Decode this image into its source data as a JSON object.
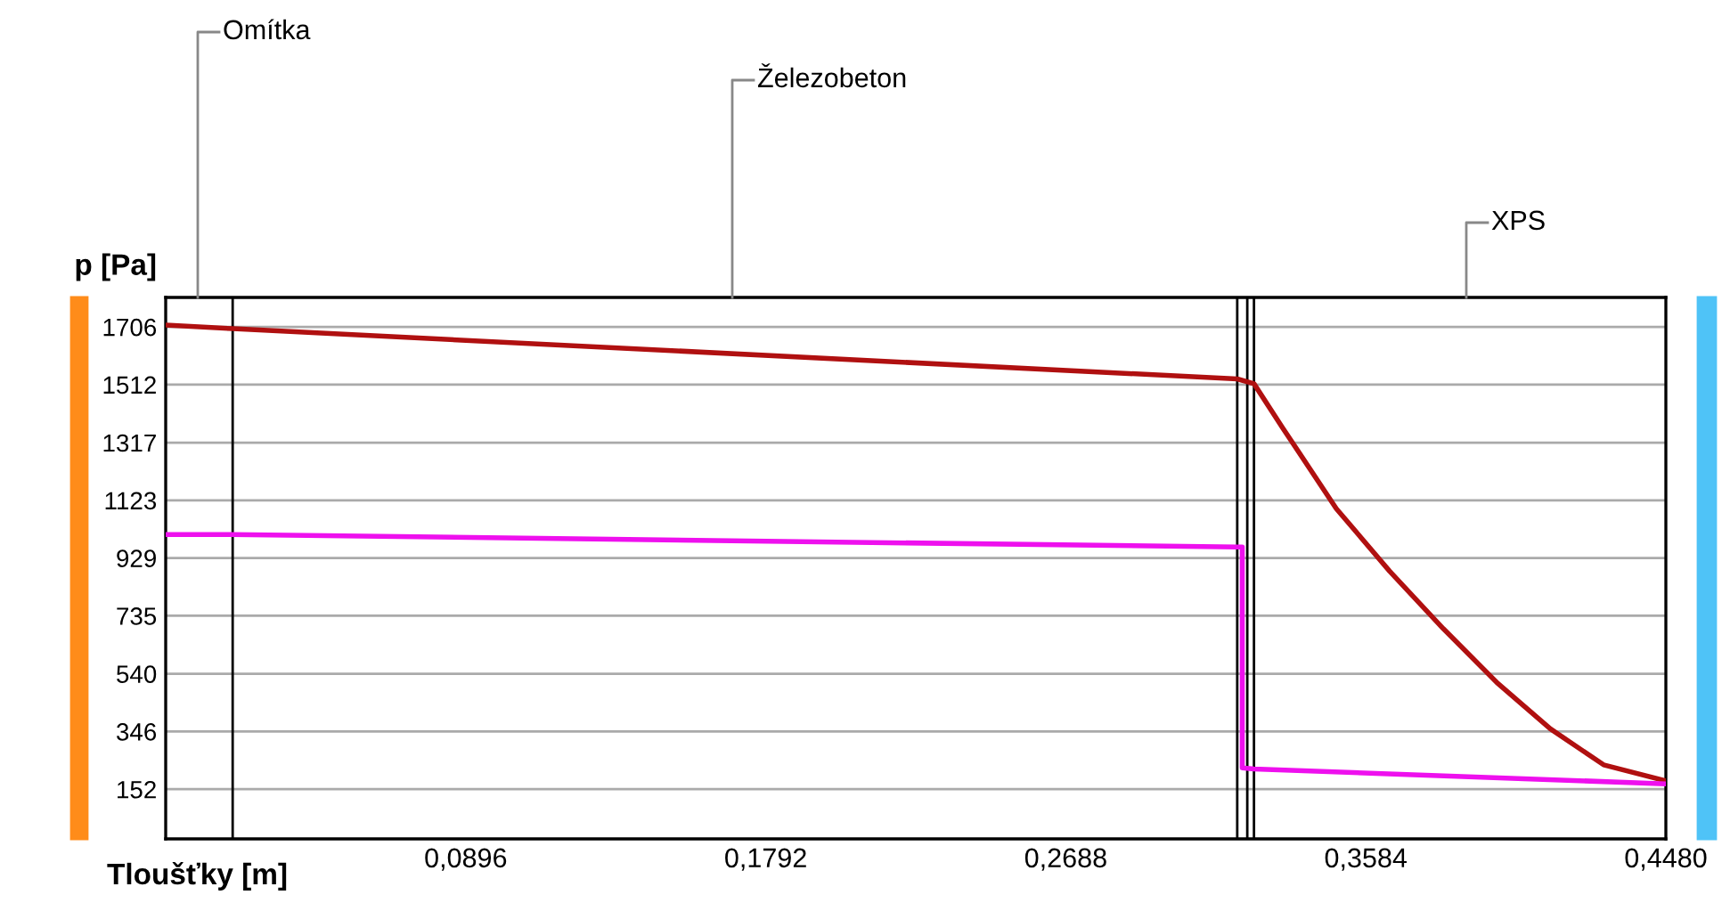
{
  "chart_data": {
    "type": "line",
    "xlabel": "Tloušťky [m]",
    "ylabel": "p [Pa]",
    "xlim": [
      0,
      0.448
    ],
    "xticks": [
      {
        "value": 0.0896,
        "label": "0,0896"
      },
      {
        "value": 0.1792,
        "label": "0,1792"
      },
      {
        "value": 0.2688,
        "label": "0,2688"
      },
      {
        "value": 0.3584,
        "label": "0,3584"
      },
      {
        "value": 0.448,
        "label": "0,4480"
      }
    ],
    "ylim": [
      -15,
      1805
    ],
    "yticks": [
      152,
      346,
      540,
      735,
      929,
      1123,
      1317,
      1512,
      1706
    ],
    "grid": "y",
    "legend": false,
    "marker": "none",
    "line_style": "solid",
    "series": [
      {
        "color": "#b01010",
        "x": [
          0,
          0.02,
          0.32,
          0.325,
          0.3336,
          0.3496,
          0.3655,
          0.3815,
          0.3975,
          0.4135,
          0.4294,
          0.448
        ],
        "values": [
          1712,
          1700,
          1531,
          1515,
          1366,
          1095,
          885,
          692,
          511,
          355,
          234,
          180
        ]
      },
      {
        "color": "#ee10ee",
        "x": [
          0,
          0.02,
          0.32,
          0.3215,
          0.3215,
          0.325,
          0.448
        ],
        "values": [
          1008,
          1008,
          966,
          966,
          224,
          220,
          170
        ]
      }
    ],
    "ref_lines": [
      {
        "axis": "x",
        "value": 0.02,
        "color": "#000000"
      },
      {
        "axis": "x",
        "value": 0.32,
        "color": "#000000"
      },
      {
        "axis": "x",
        "value": 0.323,
        "color": "#000000"
      },
      {
        "axis": "x",
        "value": 0.325,
        "color": "#000000"
      }
    ],
    "annotations": [
      "Omítka",
      "Železobeton",
      "XPS"
    ]
  }
}
